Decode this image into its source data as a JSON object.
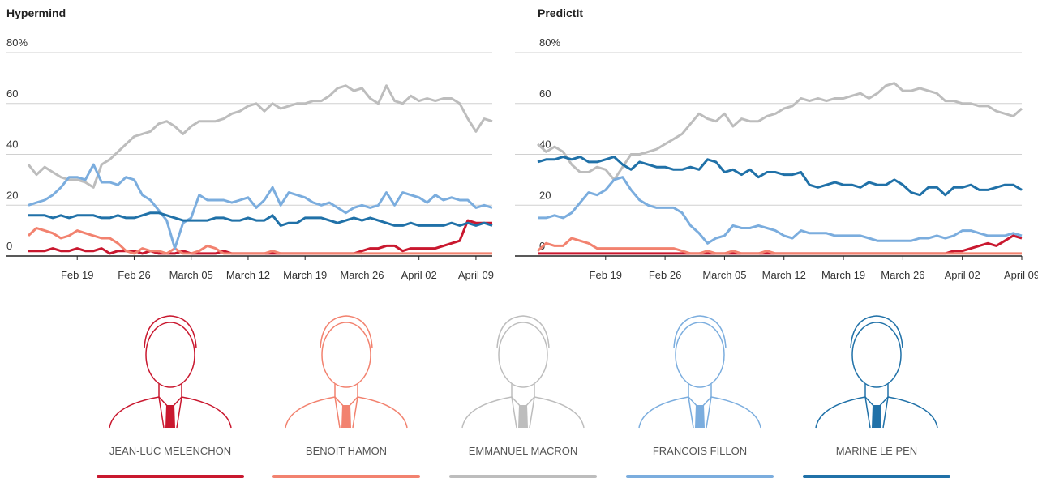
{
  "chart_data": [
    {
      "type": "line",
      "title": "Hypermind",
      "categories": [
        null,
        null,
        null,
        null,
        null,
        null,
        "Feb 19",
        null,
        null,
        null,
        null,
        null,
        null,
        "Feb 26",
        null,
        null,
        null,
        null,
        null,
        null,
        "March 05",
        null,
        null,
        null,
        null,
        null,
        null,
        "March 12",
        null,
        null,
        null,
        null,
        null,
        null,
        "March 19",
        null,
        null,
        null,
        null,
        null,
        null,
        "March 26",
        null,
        null,
        null,
        null,
        null,
        null,
        "April 02",
        null,
        null,
        null,
        null,
        null,
        null,
        "April 09",
        null,
        null
      ],
      "ylim": [
        0,
        80
      ],
      "yticks": [
        0,
        20,
        40,
        60,
        {
          "value": 80,
          "label": "80%"
        }
      ],
      "grid": true,
      "series": [
        {
          "name": "JEAN-LUC MELENCHON",
          "color": "#c9182f",
          "values": [
            2,
            2,
            2,
            3,
            2,
            2,
            3,
            2,
            2,
            3,
            1,
            2,
            2,
            2,
            1,
            2,
            1,
            1,
            1,
            2,
            1,
            1,
            1,
            1,
            2,
            1,
            1,
            1,
            1,
            1,
            1,
            1,
            1,
            1,
            1,
            1,
            1,
            1,
            1,
            1,
            1,
            2,
            3,
            3,
            4,
            4,
            2,
            3,
            3,
            3,
            3,
            4,
            5,
            6,
            14,
            13,
            13,
            13
          ]
        },
        {
          "name": "BENOIT HAMON",
          "color": "#f2826f",
          "values": [
            8,
            11,
            10,
            9,
            7,
            8,
            10,
            9,
            8,
            7,
            7,
            5,
            2,
            1,
            3,
            2,
            2,
            1,
            3,
            1,
            1,
            2,
            4,
            3,
            1,
            1,
            1,
            1,
            1,
            1,
            2,
            1,
            1,
            1,
            1,
            1,
            1,
            1,
            1,
            1,
            1,
            1,
            1,
            1,
            1,
            1,
            1,
            1,
            1,
            1,
            1,
            1,
            1,
            1,
            1,
            1,
            1,
            1
          ]
        },
        {
          "name": "EMMANUEL MACRON",
          "color": "#bdbdbd",
          "values": [
            36,
            32,
            35,
            33,
            31,
            30,
            30,
            29,
            27,
            36,
            38,
            41,
            44,
            47,
            48,
            49,
            52,
            53,
            51,
            48,
            51,
            53,
            53,
            53,
            54,
            56,
            57,
            59,
            60,
            57,
            60,
            58,
            59,
            60,
            60,
            61,
            61,
            63,
            66,
            67,
            65,
            66,
            62,
            60,
            67,
            61,
            60,
            63,
            61,
            62,
            61,
            62,
            62,
            60,
            54,
            49,
            54,
            53
          ]
        },
        {
          "name": "FRANCOIS FILLON",
          "color": "#7badde",
          "values": [
            20,
            21,
            22,
            24,
            27,
            31,
            31,
            30,
            36,
            29,
            29,
            28,
            31,
            30,
            24,
            22,
            18,
            14,
            3,
            13,
            15,
            24,
            22,
            22,
            22,
            21,
            22,
            23,
            19,
            22,
            27,
            20,
            25,
            24,
            23,
            21,
            20,
            21,
            19,
            17,
            19,
            20,
            19,
            20,
            25,
            20,
            25,
            24,
            23,
            21,
            24,
            22,
            23,
            22,
            22,
            19,
            20,
            19
          ]
        },
        {
          "name": "MARINE LE PEN",
          "color": "#2071a8",
          "values": [
            16,
            16,
            16,
            15,
            16,
            15,
            16,
            16,
            16,
            15,
            15,
            16,
            15,
            15,
            16,
            17,
            17,
            16,
            15,
            14,
            14,
            14,
            14,
            15,
            15,
            14,
            14,
            15,
            14,
            14,
            16,
            12,
            13,
            13,
            15,
            15,
            15,
            14,
            13,
            14,
            15,
            14,
            15,
            14,
            13,
            12,
            12,
            13,
            12,
            12,
            12,
            12,
            13,
            12,
            13,
            12,
            13,
            12
          ]
        }
      ]
    },
    {
      "type": "line",
      "title": "PredictIt",
      "categories": [
        null,
        null,
        null,
        null,
        null,
        null,
        null,
        null,
        "Feb 19",
        null,
        null,
        null,
        null,
        null,
        null,
        "Feb 26",
        null,
        null,
        null,
        null,
        null,
        null,
        "March 05",
        null,
        null,
        null,
        null,
        null,
        null,
        "March 12",
        null,
        null,
        null,
        null,
        null,
        null,
        "March 19",
        null,
        null,
        null,
        null,
        null,
        null,
        "March 26",
        null,
        null,
        null,
        null,
        null,
        null,
        "April 02",
        null,
        null,
        null,
        null,
        null,
        null,
        "April 09"
      ],
      "ylim": [
        0,
        80
      ],
      "yticks": [
        0,
        20,
        40,
        60,
        {
          "value": 80,
          "label": "80%"
        }
      ],
      "grid": true,
      "series": [
        {
          "color": "#c9182f",
          "values": [
            1,
            1,
            1,
            1,
            1,
            1,
            1,
            1,
            1,
            1,
            1,
            1,
            1,
            1,
            1,
            1,
            1,
            1,
            1,
            1,
            1,
            1,
            1,
            1,
            1,
            1,
            1,
            1,
            1,
            1,
            1,
            1,
            1,
            1,
            1,
            1,
            1,
            1,
            1,
            1,
            1,
            1,
            1,
            1,
            1,
            1,
            1,
            1,
            1,
            2,
            2,
            3,
            4,
            5,
            4,
            6,
            8,
            7
          ]
        },
        {
          "color": "#f2826f",
          "values": [
            2,
            5,
            4,
            4,
            7,
            6,
            5,
            3,
            3,
            3,
            3,
            3,
            3,
            3,
            3,
            3,
            3,
            2,
            1,
            1,
            2,
            1,
            1,
            2,
            1,
            1,
            1,
            2,
            1,
            1,
            1,
            1,
            1,
            1,
            1,
            1,
            1,
            1,
            1,
            1,
            1,
            1,
            1,
            1,
            1,
            1,
            1,
            1,
            1,
            1,
            1,
            1,
            1,
            1,
            1,
            1,
            1,
            1
          ]
        },
        {
          "color": "#bdbdbd",
          "values": [
            44,
            41,
            43,
            41,
            36,
            33,
            33,
            35,
            34,
            30,
            35,
            40,
            40,
            41,
            42,
            44,
            46,
            48,
            52,
            56,
            54,
            53,
            56,
            51,
            54,
            53,
            53,
            55,
            56,
            58,
            59,
            62,
            61,
            62,
            61,
            62,
            62,
            63,
            64,
            62,
            64,
            67,
            68,
            65,
            65,
            66,
            65,
            64,
            61,
            61,
            60,
            60,
            59,
            59,
            57,
            56,
            55,
            58
          ]
        },
        {
          "color": "#7badde",
          "values": [
            15,
            15,
            16,
            15,
            17,
            21,
            25,
            24,
            26,
            30,
            31,
            26,
            22,
            20,
            19,
            19,
            19,
            17,
            12,
            9,
            5,
            7,
            8,
            12,
            11,
            11,
            12,
            11,
            10,
            8,
            7,
            10,
            9,
            9,
            9,
            8,
            8,
            8,
            8,
            7,
            6,
            6,
            6,
            6,
            6,
            7,
            7,
            8,
            7,
            8,
            10,
            10,
            9,
            8,
            8,
            8,
            9,
            8
          ]
        },
        {
          "color": "#2071a8",
          "values": [
            37,
            38,
            38,
            39,
            38,
            39,
            37,
            37,
            38,
            39,
            36,
            34,
            37,
            36,
            35,
            35,
            34,
            34,
            35,
            34,
            38,
            37,
            33,
            34,
            32,
            34,
            31,
            33,
            33,
            32,
            32,
            33,
            28,
            27,
            28,
            29,
            28,
            28,
            27,
            29,
            28,
            28,
            30,
            28,
            25,
            24,
            27,
            27,
            24,
            27,
            27,
            28,
            26,
            26,
            27,
            28,
            28,
            26
          ]
        }
      ]
    }
  ]
}
